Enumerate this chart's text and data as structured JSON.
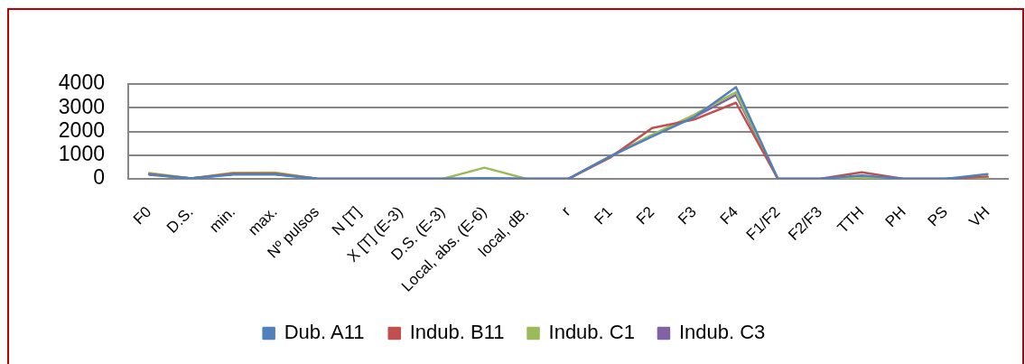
{
  "chart_data": {
    "type": "line",
    "categories": [
      "F0",
      "D.S.",
      "min.",
      "max.",
      "Nº pulsos",
      "N [T]",
      "X [T] (E-3)",
      "D.S. (E-3)",
      "Local, abs. (E-6)",
      "local, dB.",
      "r",
      "F1",
      "F2",
      "F3",
      "F4",
      "F1/F2",
      "F2/F3",
      "TTH",
      "PH",
      "PS",
      "VH"
    ],
    "series": [
      {
        "name": "Dub. A11",
        "color": "#4f81bd",
        "values": [
          170,
          20,
          180,
          180,
          10,
          0,
          0,
          0,
          30,
          0,
          0,
          950,
          1790,
          2600,
          3870,
          0,
          0,
          140,
          0,
          0,
          200
        ]
      },
      {
        "name": "Indub. B11",
        "color": "#c0504d",
        "values": [
          200,
          20,
          220,
          220,
          10,
          0,
          0,
          0,
          10,
          0,
          0,
          900,
          2140,
          2500,
          3210,
          0,
          0,
          280,
          0,
          0,
          100
        ]
      },
      {
        "name": "Indub. C1",
        "color": "#9bbb59",
        "values": [
          250,
          20,
          260,
          270,
          10,
          0,
          0,
          0,
          470,
          0,
          0,
          950,
          1860,
          2700,
          3650,
          0,
          0,
          50,
          0,
          0,
          60
        ]
      },
      {
        "name": "Indub. C3",
        "color": "#8064a2",
        "values": [
          200,
          20,
          200,
          200,
          10,
          0,
          0,
          0,
          10,
          0,
          0,
          950,
          1830,
          2600,
          3540,
          0,
          0,
          100,
          0,
          0,
          80
        ]
      }
    ],
    "ylim": [
      0,
      4000
    ],
    "yticks": [
      0,
      1000,
      2000,
      3000,
      4000
    ],
    "grid": "y",
    "legend": "bottom",
    "marker": "none"
  }
}
